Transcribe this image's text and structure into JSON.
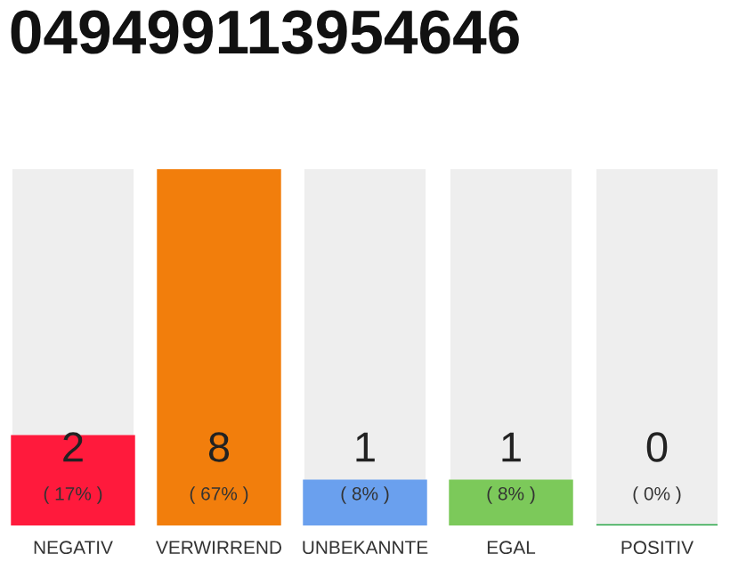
{
  "chart_data": {
    "type": "bar",
    "title": "049499113954646",
    "categories": [
      "NEGATIV",
      "VERWIRREND",
      "UNBEKANNTE",
      "EGAL",
      "POSITIV"
    ],
    "values": [
      2,
      8,
      1,
      1,
      0
    ],
    "colors": [
      "#ff1a3c",
      "#f27e0c",
      "#6aa0ee",
      "#7cc95a",
      "#2ca84a"
    ],
    "ylim": [
      0,
      8
    ],
    "tick_labels": "x",
    "grid": false,
    "value_labels": [
      "2\n( 17% )",
      "8\n( 67% )",
      "1\n( 8% )",
      "1\n( 8% )",
      "0\n( 0% )"
    ]
  }
}
